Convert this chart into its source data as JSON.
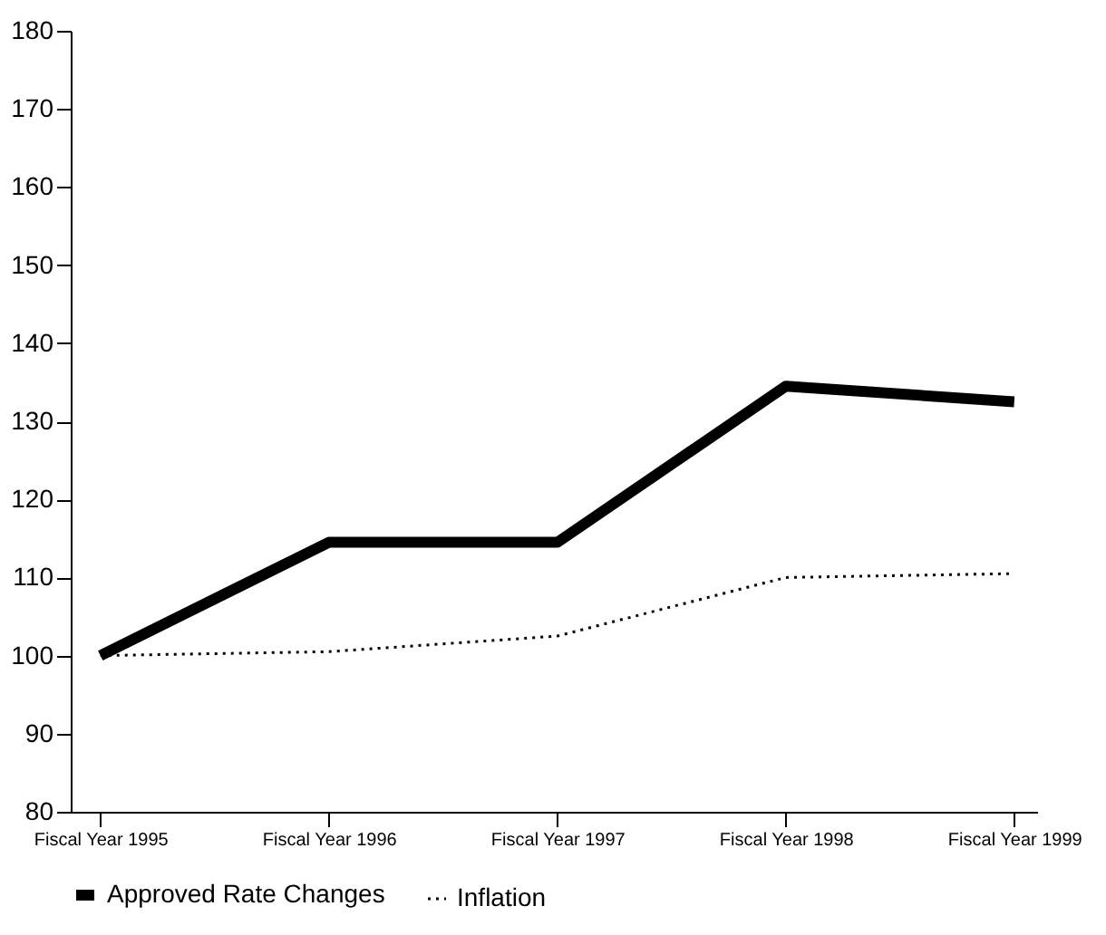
{
  "chart_data": {
    "type": "line",
    "categories": [
      "Fiscal Year 1995",
      "Fiscal Year 1996",
      "Fiscal Year 1997",
      "Fiscal Year 1998",
      "Fiscal Year 1999"
    ],
    "series": [
      {
        "name": "Approved Rate Changes",
        "color": "#000000",
        "line_style": "solid",
        "values": [
          100,
          114.5,
          114.5,
          134.5,
          132.5
        ]
      },
      {
        "name": "Inflation",
        "color": "#000000",
        "line_style": "dotted",
        "values": [
          100,
          100.5,
          102.5,
          110,
          110.5
        ]
      }
    ],
    "ylim": [
      80,
      180
    ],
    "yticks": [
      80,
      90,
      100,
      110,
      120,
      130,
      140,
      150,
      160,
      170,
      180
    ],
    "grid": false,
    "legend": "bottom",
    "marker": "none"
  }
}
